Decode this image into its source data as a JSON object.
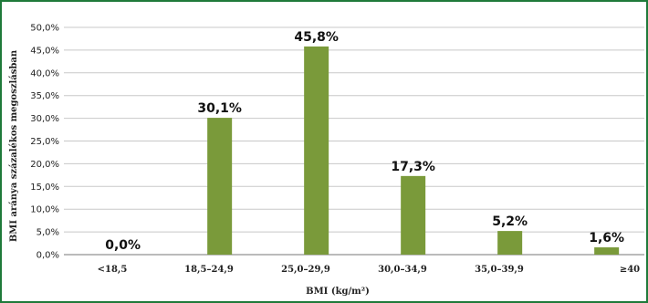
{
  "chart_data": {
    "type": "bar",
    "categories": [
      "<18,5",
      "18,5–24,9",
      "25,0–29,9",
      "30,0–34,9",
      "35,0–39,9",
      "≥40"
    ],
    "values": [
      0.0,
      30.1,
      45.8,
      17.3,
      5.2,
      1.6
    ],
    "data_labels": [
      "0,0%",
      "30,1%",
      "45,8%",
      "17,3%",
      "5,2%",
      "1,6%"
    ],
    "title": "",
    "xlabel": "BMI (kg/m²)",
    "ylabel": "BMI aránya százalékos megoszlásban",
    "ylim": [
      0,
      50
    ],
    "y_ticks": [
      "0,0%",
      "5,0%",
      "10,0%",
      "15,0%",
      "20,0%",
      "25,0%",
      "30,0%",
      "35,0%",
      "40,0%",
      "45,0%",
      "50,0%"
    ],
    "grid": true,
    "legend": "none",
    "bar_color": "#7a9a3a",
    "frame_color": "#1f7a3a"
  }
}
